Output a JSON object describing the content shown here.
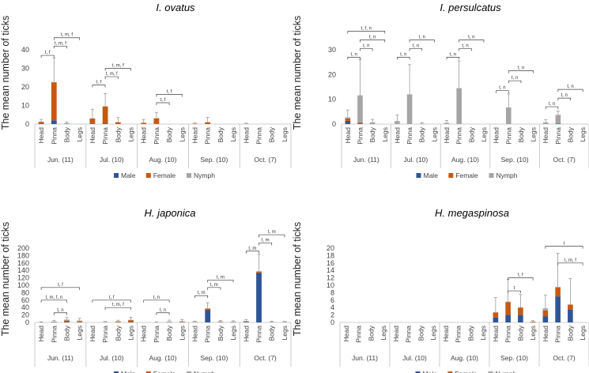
{
  "colors": {
    "male": "#2f5597",
    "female": "#c55a11",
    "nymph": "#a5a5a5"
  },
  "chart_data": [
    {
      "type": "bar",
      "stacked": true,
      "title": "I. ovatus",
      "ylabel": "The mean number of ticks",
      "ylim": [
        0,
        40
      ],
      "yticks": [
        "0",
        "10",
        "20",
        "30",
        "40"
      ],
      "ytick_values": [
        0,
        10,
        20,
        30,
        40
      ],
      "body_parts": [
        "Head",
        "Pinna",
        "Body",
        "Legs"
      ],
      "months": [
        "Jun. (11)",
        "Jul. (10)",
        "Aug. (10)",
        "Sep. (10)",
        "Oct. (7)"
      ],
      "legend": [
        "Male",
        "Female",
        "Nymph"
      ],
      "series": [
        {
          "name": "Male",
          "values": [
            0.2,
            2.0,
            0,
            0,
            0,
            0.2,
            0,
            0,
            0,
            0.1,
            0,
            0,
            0,
            0,
            0,
            0,
            0,
            0,
            0,
            0
          ]
        },
        {
          "name": "Female",
          "values": [
            1.0,
            20.5,
            0.3,
            0,
            3.0,
            9.3,
            1.0,
            0,
            0.7,
            3.0,
            0,
            0,
            0.2,
            1.0,
            0,
            0,
            0.1,
            0,
            0,
            0
          ]
        },
        {
          "name": "Nymph",
          "values": [
            0,
            0,
            0,
            0,
            0,
            0,
            0,
            0,
            0,
            0,
            0,
            0,
            0,
            0,
            0,
            0,
            0,
            0,
            0,
            0
          ]
        }
      ],
      "error": [
        1.3,
        13.0,
        0.8,
        0,
        5.0,
        7.0,
        2.5,
        0,
        1.8,
        3.2,
        0,
        0,
        0.4,
        2.6,
        0,
        0,
        0.4,
        0,
        0,
        0
      ],
      "brackets": [
        {
          "from": 0,
          "to": 1,
          "label": "t, f",
          "value": 37
        },
        {
          "from": 1,
          "to": 2,
          "label": "t, m, f",
          "value": 42
        },
        {
          "from": 1,
          "to": 3,
          "label": "t, m, f",
          "value": 46.5
        },
        {
          "from": 4,
          "to": 5,
          "label": "t, f",
          "value": 21
        },
        {
          "from": 5,
          "to": 6,
          "label": "t, m, f",
          "value": 25.5
        },
        {
          "from": 5,
          "to": 7,
          "label": "t, m, f",
          "value": 30
        },
        {
          "from": 9,
          "to": 10,
          "label": "t, f",
          "value": 11.5
        },
        {
          "from": 9,
          "to": 11,
          "label": "t, f",
          "value": 16
        }
      ]
    },
    {
      "type": "bar",
      "stacked": true,
      "title": "I. persulcatus",
      "ylabel": "The mean number of ticks",
      "ylim": [
        0,
        30
      ],
      "yticks": [
        "0",
        "10",
        "20",
        "30"
      ],
      "ytick_values": [
        0,
        10,
        20,
        30
      ],
      "body_parts": [
        "Head",
        "Pinna",
        "Body",
        "Legs"
      ],
      "months": [
        "Jun. (11)",
        "Jul. (10)",
        "Aug. (10)",
        "Sep. (10)",
        "Oct. (7)"
      ],
      "legend": [
        "Male",
        "Female",
        "Nymph"
      ],
      "series": [
        {
          "name": "Male",
          "values": [
            1.3,
            0.2,
            0,
            0,
            0,
            0,
            0,
            0,
            0,
            0,
            0,
            0,
            0,
            0,
            0,
            0,
            0,
            0,
            0,
            0
          ]
        },
        {
          "name": "Female",
          "values": [
            1.0,
            0.5,
            0,
            0,
            0,
            0,
            0,
            0,
            0,
            0,
            0,
            0,
            0,
            0,
            0,
            0,
            0,
            0.3,
            0,
            0
          ]
        },
        {
          "name": "Nymph",
          "values": [
            0.4,
            10.9,
            0.7,
            0,
            1.2,
            12.0,
            0.2,
            0,
            0.5,
            14.5,
            0,
            0,
            0,
            6.7,
            0,
            0,
            0.7,
            3.4,
            0,
            0
          ]
        }
      ],
      "error": [
        3.0,
        14.5,
        1.2,
        0,
        2.5,
        12.0,
        0.4,
        0,
        1.0,
        11.0,
        0,
        0,
        0,
        5.5,
        0,
        0,
        1.0,
        1.6,
        0,
        0
      ],
      "brackets": [
        {
          "from": 0,
          "to": 1,
          "label": "t, n",
          "value": 27
        },
        {
          "from": 1,
          "to": 2,
          "label": "t, n",
          "value": 30.5
        },
        {
          "from": 1,
          "to": 3,
          "label": "t, n",
          "value": 34
        },
        {
          "from": 0,
          "to": 3,
          "label": "t, f, n",
          "value": 37.5
        },
        {
          "from": 4,
          "to": 5,
          "label": "t, n",
          "value": 27
        },
        {
          "from": 5,
          "to": 6,
          "label": "t, n",
          "value": 30.5
        },
        {
          "from": 5,
          "to": 7,
          "label": "t, n",
          "value": 34
        },
        {
          "from": 8,
          "to": 9,
          "label": "t, n",
          "value": 27
        },
        {
          "from": 9,
          "to": 10,
          "label": "t, n",
          "value": 30.5
        },
        {
          "from": 9,
          "to": 11,
          "label": "t, n",
          "value": 34
        },
        {
          "from": 12,
          "to": 13,
          "label": "t, n",
          "value": 13.5
        },
        {
          "from": 13,
          "to": 14,
          "label": "t, n",
          "value": 17.5
        },
        {
          "from": 13,
          "to": 15,
          "label": "t, n",
          "value": 21.5
        },
        {
          "from": 16,
          "to": 17,
          "label": "t, n",
          "value": 7.0
        },
        {
          "from": 17,
          "to": 18,
          "label": "t, n",
          "value": 10.5
        },
        {
          "from": 17,
          "to": 19,
          "label": "t, n",
          "value": 14.0
        }
      ]
    },
    {
      "type": "bar",
      "stacked": true,
      "title": "H. japonica",
      "ylabel": "The mean number of ticks",
      "ylim": [
        0,
        200
      ],
      "yticks": [
        "0",
        "20",
        "40",
        "60",
        "80",
        "100",
        "120",
        "140",
        "160",
        "180",
        "200"
      ],
      "ytick_values": [
        0,
        20,
        40,
        60,
        80,
        100,
        120,
        140,
        160,
        180,
        200
      ],
      "body_parts": [
        "Head",
        "Pinna",
        "Body",
        "Legs"
      ],
      "months": [
        "Jun. (11)",
        "Jul. (10)",
        "Aug. (10)",
        "Sep. (10)",
        "Oct. (7)"
      ],
      "legend": [
        "Male",
        "Female",
        "Nymph"
      ],
      "series": [
        {
          "name": "Male",
          "values": [
            0,
            0.5,
            1.0,
            0.5,
            0,
            0.3,
            0.5,
            1.0,
            0,
            0,
            0.3,
            0.5,
            0.3,
            33.0,
            0.5,
            0.5,
            1.0,
            133.0,
            0.5,
            0.5
          ]
        },
        {
          "name": "Female",
          "values": [
            0.3,
            0.5,
            4.0,
            3.0,
            0,
            0.5,
            2.0,
            5.0,
            0,
            0,
            0.5,
            1.5,
            0.5,
            4.0,
            0.5,
            0.5,
            1.0,
            3.0,
            0.3,
            0.3
          ]
        },
        {
          "name": "Nymph",
          "values": [
            0.3,
            1.5,
            2.5,
            1.5,
            0,
            0.2,
            0.5,
            1.0,
            0,
            0.3,
            1.5,
            1.0,
            1.0,
            1.0,
            1.5,
            1.0,
            2.0,
            2.0,
            0.5,
            0.5
          ]
        }
      ],
      "error": [
        1.0,
        2.5,
        6.0,
        6.0,
        0,
        1.5,
        3.0,
        7.0,
        0,
        1.0,
        4.0,
        5.0,
        2.0,
        15.0,
        3.0,
        2.5,
        4.0,
        45.0,
        2.0,
        1.5
      ],
      "brackets": [
        {
          "from": 1,
          "to": 2,
          "label": "t, n",
          "value": 26
        },
        {
          "from": 0,
          "to": 2,
          "label": "t, m, f, n",
          "value": 60
        },
        {
          "from": 0,
          "to": 3,
          "label": "t, f",
          "value": 94
        },
        {
          "from": 5,
          "to": 7,
          "label": "t, m, f",
          "value": 40
        },
        {
          "from": 4,
          "to": 7,
          "label": "t, f",
          "value": 60
        },
        {
          "from": 9,
          "to": 10,
          "label": "t, n",
          "value": 26
        },
        {
          "from": 8,
          "to": 10,
          "label": "t, n",
          "value": 60
        },
        {
          "from": 12,
          "to": 13,
          "label": "t, m",
          "value": 72
        },
        {
          "from": 13,
          "to": 14,
          "label": "t, m",
          "value": 94
        },
        {
          "from": 13,
          "to": 15,
          "label": "t, m",
          "value": 114
        },
        {
          "from": 16,
          "to": 17,
          "label": "t, m",
          "value": 192
        },
        {
          "from": 17,
          "to": 18,
          "label": "t, m",
          "value": 214
        },
        {
          "from": 17,
          "to": 19,
          "label": "t, m",
          "value": 236
        }
      ]
    },
    {
      "type": "bar",
      "stacked": true,
      "title": "H. megaspinosa",
      "ylabel": "The mean number of ticks",
      "ylim": [
        0,
        20
      ],
      "yticks": [
        "0",
        "2",
        "4",
        "6",
        "8",
        "10",
        "12",
        "14",
        "16",
        "18",
        "20"
      ],
      "ytick_values": [
        0,
        2,
        4,
        6,
        8,
        10,
        12,
        14,
        16,
        18,
        20
      ],
      "body_parts": [
        "Head",
        "Pinna",
        "Body",
        "Legs"
      ],
      "months": [
        "Jun. (11)",
        "Jul. (10)",
        "Aug. (10)",
        "Sep. (10)",
        "Oct. (7)"
      ],
      "legend": [
        "Male",
        "Female",
        "Nymph"
      ],
      "series": [
        {
          "name": "Male",
          "values": [
            0,
            0,
            0,
            0,
            0,
            0,
            0,
            0,
            0,
            0,
            0,
            0,
            1.3,
            2.0,
            2.0,
            0,
            1.6,
            7.0,
            3.4,
            0
          ]
        },
        {
          "name": "Female",
          "values": [
            0,
            0,
            0,
            0,
            0,
            0,
            0,
            0,
            0,
            0,
            0,
            0,
            1.4,
            3.5,
            2.0,
            0.2,
            1.6,
            2.4,
            1.4,
            0
          ]
        },
        {
          "name": "Nymph",
          "values": [
            0,
            0,
            0,
            0,
            0,
            0,
            0,
            0,
            0,
            0,
            0,
            0,
            0,
            0.1,
            0,
            0,
            0.6,
            0.2,
            0,
            0
          ]
        }
      ],
      "error": [
        0,
        0,
        0,
        0,
        0,
        0,
        0,
        0,
        0,
        0,
        0,
        0,
        4.0,
        6.0,
        3.5,
        0.3,
        3.6,
        9.0,
        7.0,
        0
      ],
      "brackets": [
        {
          "from": 13,
          "to": 14,
          "label": "t",
          "value": 8.5
        },
        {
          "from": 13,
          "to": 15,
          "label": "t, f",
          "value": 12.0
        },
        {
          "from": 17,
          "to": 19,
          "label": "t, m, f",
          "value": 16.0
        },
        {
          "from": 16,
          "to": 19,
          "label": "t",
          "value": 20.5
        }
      ]
    }
  ]
}
